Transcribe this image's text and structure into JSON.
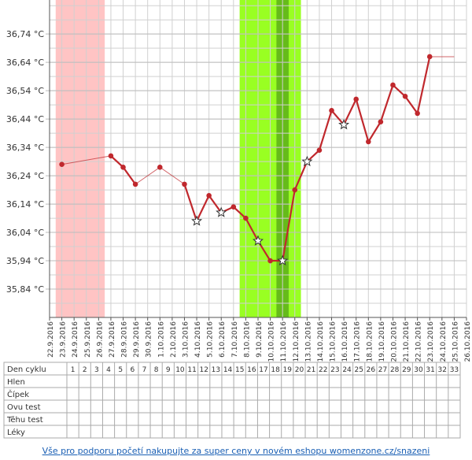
{
  "chart_data": {
    "type": "line",
    "categories": [
      "22.9.2016",
      "23.9.2016",
      "24.9.2016",
      "25.9.2016",
      "26.9.2016",
      "27.9.2016",
      "28.9.2016",
      "29.9.2016",
      "30.9.2016",
      "1.10.2016",
      "2.10.2016",
      "3.10.2016",
      "4.10.2016",
      "5.10.2016",
      "6.10.2016",
      "7.10.2016",
      "8.10.2016",
      "9.10.2016",
      "10.10.2016",
      "11.10.2016",
      "12.10.2016",
      "13.10.2016",
      "14.10.2016",
      "15.10.2016",
      "16.10.2016",
      "17.10.2016",
      "18.10.2016",
      "19.10.2016",
      "20.10.2016",
      "21.10.2016",
      "22.10.2016",
      "23.10.2016",
      "24.10.2016",
      "25.10.2016",
      "26.10.2016"
    ],
    "series": [
      {
        "color": "#c0282d",
        "values": [
          null,
          36.28,
          null,
          null,
          null,
          36.31,
          36.27,
          36.21,
          null,
          36.27,
          null,
          36.21,
          36.08,
          36.17,
          36.11,
          36.13,
          36.09,
          36.01,
          35.94,
          35.94,
          36.19,
          36.29,
          36.33,
          36.47,
          36.42,
          36.51,
          36.36,
          36.43,
          36.56,
          36.52,
          36.46,
          36.66,
          null,
          null,
          null
        ]
      }
    ],
    "star_dates": [
      "4.10.2016",
      "6.10.2016",
      "9.10.2016",
      "11.10.2016",
      "13.10.2016",
      "16.10.2016"
    ],
    "extend_to": "25.10.2016",
    "bands": [
      {
        "from": "23.9.2016",
        "to": "26.9.2016",
        "color": "#ffc4c4"
      },
      {
        "from": "8.10.2016",
        "to": "12.10.2016",
        "color": "#99ff22"
      },
      {
        "from": "11.10.2016",
        "to": "11.10.2016",
        "color": "#66bb1a"
      }
    ],
    "ylim": [
      35.74,
      36.86
    ],
    "yticks": [
      {
        "value": 35.84,
        "label": "35,84 °C"
      },
      {
        "value": 35.94,
        "label": "35,94 °C"
      },
      {
        "value": 36.04,
        "label": "36,04 °C"
      },
      {
        "value": 36.14,
        "label": "36,14 °C"
      },
      {
        "value": 36.24,
        "label": "36,24 °C"
      },
      {
        "value": 36.34,
        "label": "36,34 °C"
      },
      {
        "value": 36.44,
        "label": "36,44 °C"
      },
      {
        "value": 36.54,
        "label": "36,54 °C"
      },
      {
        "value": 36.64,
        "label": "36,64 °C"
      },
      {
        "value": 36.74,
        "label": "36,74 °C"
      }
    ],
    "grid": true
  },
  "table": {
    "rows": [
      "Den cyklu",
      "Hlen",
      "Čípek",
      "Ovu test",
      "Těhu test",
      "Léky"
    ],
    "days": [
      1,
      2,
      3,
      4,
      5,
      6,
      7,
      8,
      9,
      10,
      11,
      12,
      13,
      14,
      15,
      16,
      17,
      18,
      19,
      20,
      21,
      22,
      23,
      24,
      25,
      26,
      27,
      28,
      29,
      30,
      31,
      32,
      33
    ]
  },
  "footer": "Vše pro podporu početí nakupujte za super ceny v novém eshopu womenzone.cz/snazeni"
}
